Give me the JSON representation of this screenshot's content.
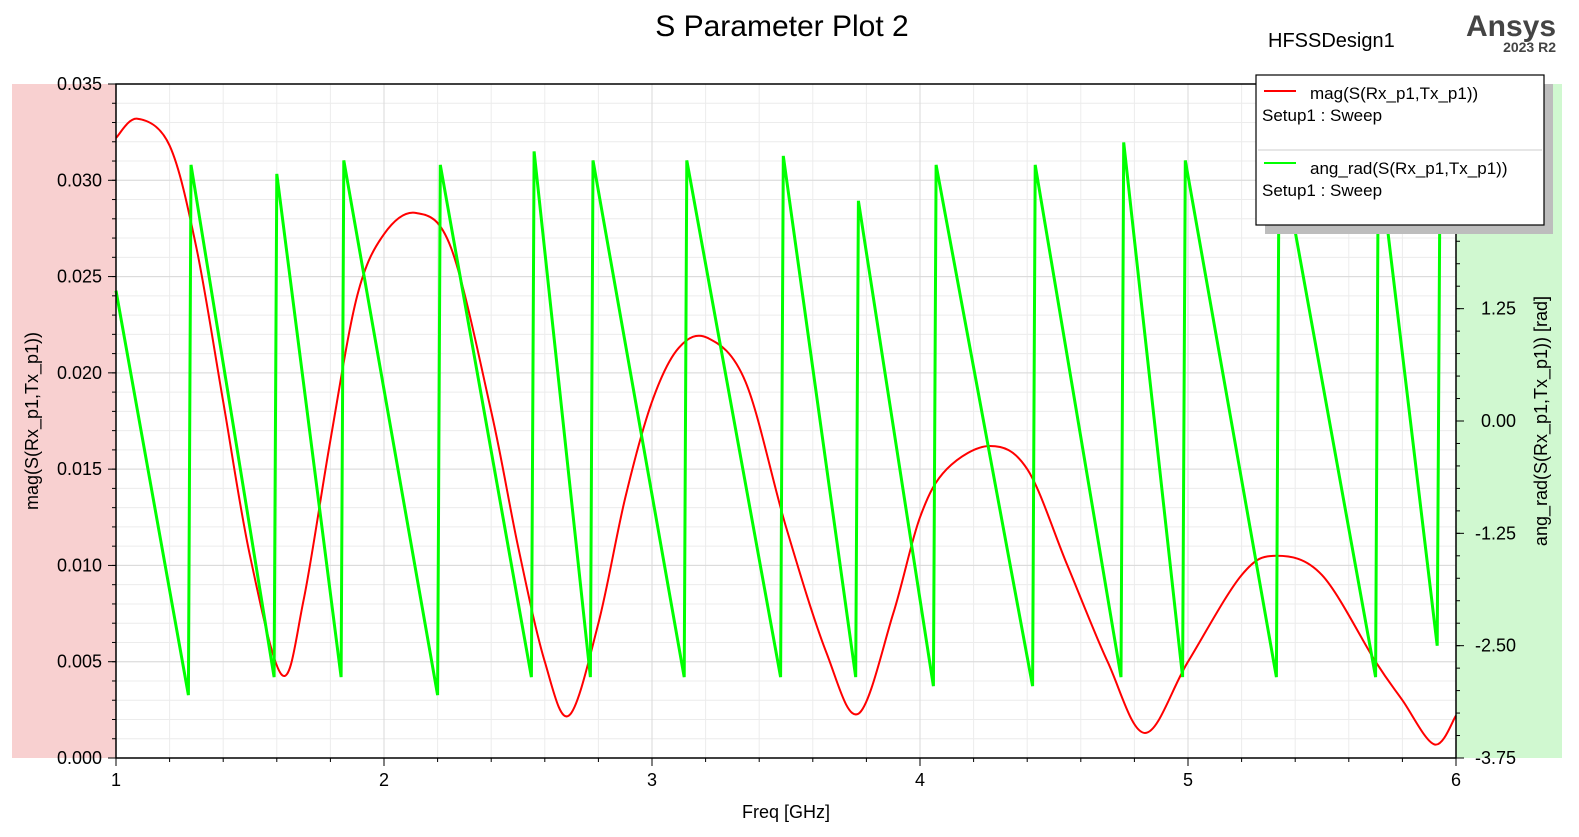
{
  "chart_data": {
    "type": "line",
    "title": "S Parameter Plot 2",
    "design_name": "HFSSDesign1",
    "brand": "Ansys",
    "brand_version": "2023 R2",
    "xlabel": "Freq [GHz]",
    "ylabel_left": "mag(S(Rx_p1,Tx_p1))",
    "ylabel_right": "ang_rad(S(Rx_p1,Tx_p1)) [rad]",
    "xlim": [
      1,
      6
    ],
    "ylim_left": [
      0,
      0.035
    ],
    "ylim_right": [
      -3.75,
      3.75
    ],
    "x_ticks": [
      "1",
      "2",
      "3",
      "4",
      "5",
      "6"
    ],
    "y_left_ticks": [
      "0.000",
      "0.005",
      "0.010",
      "0.015",
      "0.020",
      "0.025",
      "0.030",
      "0.035"
    ],
    "y_right_ticks": [
      "-3.75",
      "-2.50",
      "-1.25",
      "0.00",
      "1.25"
    ],
    "grid": true,
    "legend_position": "top-right",
    "colors": {
      "mag": "#ff0000",
      "ang": "#00ff00",
      "left_axis_bg": "#f8d0d0",
      "right_axis_bg": "#d0f8d0",
      "grid": "#d9d9d9"
    },
    "series": [
      {
        "name": "mag(S(Rx_p1,Tx_p1))",
        "setup": "Setup1 : Sweep",
        "axis": "left",
        "color": "#ff0000",
        "x": [
          1.0,
          1.08,
          1.2,
          1.3,
          1.4,
          1.5,
          1.62,
          1.7,
          1.8,
          1.9,
          2.0,
          2.12,
          2.25,
          2.4,
          2.5,
          2.6,
          2.69,
          2.8,
          2.9,
          3.0,
          3.1,
          3.21,
          3.35,
          3.5,
          3.65,
          3.77,
          3.9,
          4.0,
          4.1,
          4.26,
          4.4,
          4.55,
          4.7,
          4.84,
          5.0,
          5.2,
          5.33,
          5.5,
          5.7,
          5.8,
          5.92,
          6.0
        ],
        "y": [
          0.0322,
          0.0332,
          0.0318,
          0.0265,
          0.0185,
          0.0105,
          0.0043,
          0.0082,
          0.0165,
          0.024,
          0.0272,
          0.0283,
          0.0265,
          0.018,
          0.011,
          0.005,
          0.0022,
          0.007,
          0.0135,
          0.0185,
          0.0213,
          0.0218,
          0.0195,
          0.012,
          0.0055,
          0.0023,
          0.0075,
          0.0125,
          0.015,
          0.0162,
          0.015,
          0.01,
          0.005,
          0.0013,
          0.005,
          0.0095,
          0.0105,
          0.0095,
          0.005,
          0.003,
          0.0007,
          0.0022
        ]
      },
      {
        "name": "ang_rad(S(Rx_p1,Tx_p1))",
        "setup": "Setup1 : Sweep",
        "axis": "right",
        "color": "#00ff00",
        "x": [
          1.0,
          1.27,
          1.28,
          1.59,
          1.6,
          1.84,
          1.85,
          2.2,
          2.21,
          2.55,
          2.56,
          2.77,
          2.78,
          3.12,
          3.13,
          3.48,
          3.49,
          3.76,
          3.77,
          4.05,
          4.06,
          4.42,
          4.43,
          4.75,
          4.76,
          4.98,
          4.99,
          5.33,
          5.34,
          5.7,
          5.71,
          5.93,
          5.94,
          6.0
        ],
        "y": [
          1.45,
          -3.05,
          2.85,
          -2.85,
          2.75,
          -2.85,
          2.9,
          -3.05,
          2.85,
          -2.85,
          3.0,
          -2.85,
          2.9,
          -2.85,
          2.9,
          -2.85,
          2.95,
          -2.85,
          2.45,
          -2.95,
          2.85,
          -2.95,
          2.85,
          -2.85,
          3.1,
          -2.85,
          2.9,
          -2.85,
          3.1,
          -2.85,
          3.0,
          -2.5,
          2.6,
          2.6
        ]
      }
    ]
  }
}
